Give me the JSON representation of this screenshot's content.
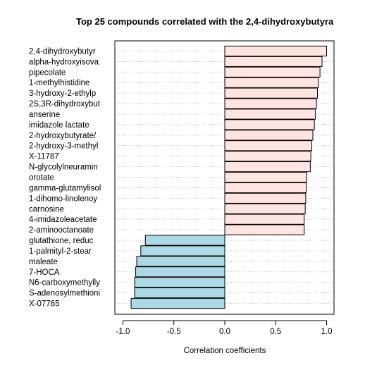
{
  "chart_data": {
    "type": "bar",
    "orientation": "horizontal",
    "title": "Top 25 compounds correlated with the 2,4-dihydroxybutyra",
    "xlabel": "Correlation coefficients",
    "ylabel": "",
    "xlim": [
      -1.05,
      1.05
    ],
    "xticks": [
      -1.0,
      -0.5,
      0.0,
      0.5,
      1.0
    ],
    "xtick_labels": [
      "-1.0",
      "-0.5",
      "0.0",
      "0.5",
      "1.0"
    ],
    "grid": "dotted horizontal lines",
    "colors": {
      "positive": "#ffe4e1",
      "negative": "#add8e6",
      "outline": "#000000",
      "grid": "#bfbfbf"
    },
    "categories": [
      "2,4-dihydroxybutyr",
      "alpha-hydroxyisova",
      "pipecolate",
      "1-methylhistidine",
      "3-hydroxy-2-ethylp",
      "2S,3R-dihydroxybut",
      "anserine",
      "imidazole lactate",
      "2-hydroxybutyrate/",
      "2-hydroxy-3-methyl",
      "X-11787",
      "N-glycolylneuramin",
      "orotate",
      "gamma-glutamylisol",
      "1-dihomo-linolenoy",
      "carnosine",
      "4-imidazoleacetate",
      "2-aminooctanoate",
      "glutathione, reduc",
      "1-palmityl-2-stear",
      "maleate",
      "7-HOCA",
      "N6-carboxymethylly",
      "S-adenosylmethioni",
      "X-07765"
    ],
    "values": [
      1.0,
      0.955,
      0.935,
      0.92,
      0.91,
      0.9,
      0.89,
      0.88,
      0.865,
      0.855,
      0.845,
      0.84,
      0.805,
      0.8,
      0.795,
      0.79,
      0.78,
      0.78,
      -0.78,
      -0.825,
      -0.865,
      -0.875,
      -0.885,
      -0.885,
      -0.92
    ]
  }
}
